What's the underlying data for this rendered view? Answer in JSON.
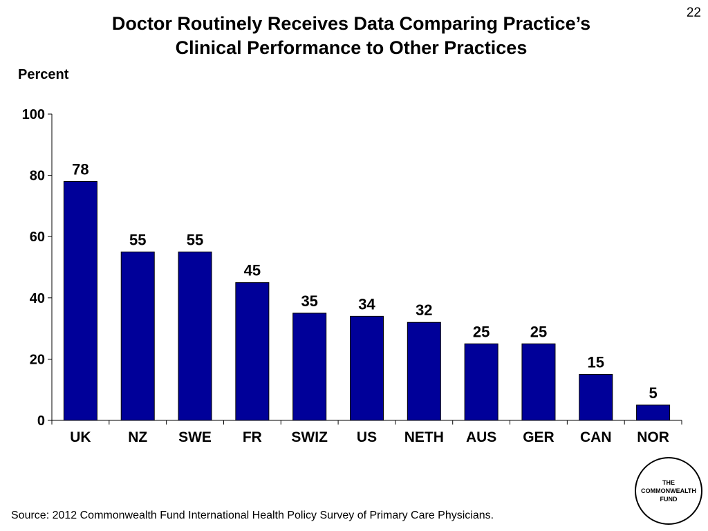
{
  "page_number": "22",
  "chart_data": {
    "type": "bar",
    "title": "Doctor Routinely Receives Data Comparing Practice’s Clinical Performance to Other Practices",
    "title_lines": [
      "Doctor Routinely Receives Data Comparing Practice’s",
      "Clinical Performance to Other Practices"
    ],
    "ylabel": "Percent",
    "xlabel": "",
    "categories": [
      "UK",
      "NZ",
      "SWE",
      "FR",
      "SWIZ",
      "US",
      "NETH",
      "AUS",
      "GER",
      "CAN",
      "NOR"
    ],
    "values": [
      78,
      55,
      55,
      45,
      35,
      34,
      32,
      25,
      25,
      15,
      5
    ],
    "ylim": [
      0,
      100
    ],
    "yticks": [
      0,
      20,
      40,
      60,
      80,
      100
    ],
    "grid": false,
    "legend": "none",
    "bar_color": "#000099",
    "data_labels": true
  },
  "source": "Source: 2012 Commonwealth Fund International Health Policy Survey of Primary Care Physicians.",
  "logo": {
    "lines": [
      "THE",
      "COMMONWEALTH",
      "FUND"
    ]
  }
}
